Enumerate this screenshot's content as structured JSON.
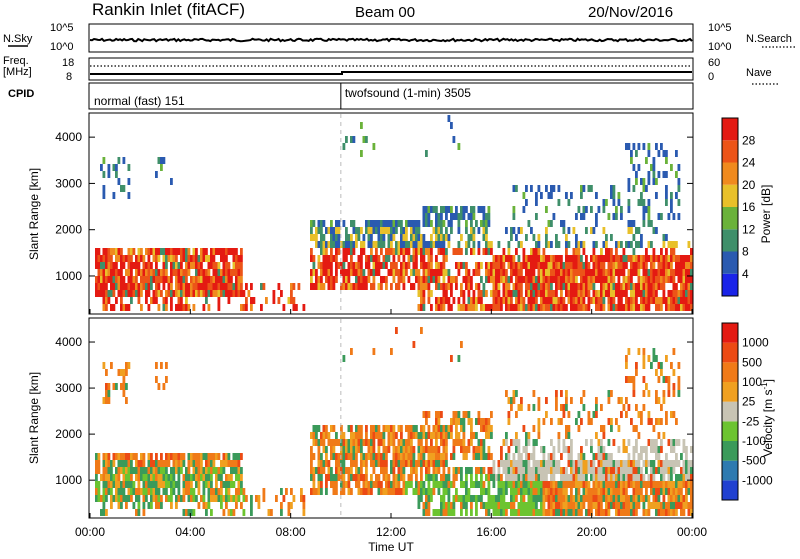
{
  "header": {
    "station": "Rankin Inlet (fitACF)",
    "beam": "Beam 00",
    "date": "20/Nov/2016"
  },
  "noise_panel": {
    "left_label": "N.Sky",
    "right_label": "N.Search",
    "top_tick": "10^5",
    "bottom_tick": "10^0",
    "right_top_tick": "10^5",
    "right_bottom_tick": "10^0"
  },
  "freq_panel": {
    "label_line1": "Freq.",
    "label_line2": "[MHz]",
    "top_tick": "18",
    "bottom_tick": "8",
    "right_label": "Nave",
    "right_top_tick": "60",
    "right_bottom_tick": "0"
  },
  "cpid_panel": {
    "label": "CPID",
    "mode1": "normal (fast) 151",
    "mode2": "twofsound (1-min) 3505",
    "mode_change_hour": 10
  },
  "chart_data": [
    {
      "type": "heatmap",
      "name_label": "Power [dB]",
      "ylabel": "Slant Range [km]",
      "xlabel": "Time UT",
      "xlim": [
        0,
        24
      ],
      "ylim": [
        200,
        4500
      ],
      "yticks": [
        1000,
        2000,
        3000,
        4000
      ],
      "colorbar": {
        "ticks": [
          "4",
          "8",
          "12",
          "16",
          "20",
          "24",
          "28"
        ],
        "colors": [
          "#1a24e8",
          "#2a5ab0",
          "#3f8f6a",
          "#6ab23a",
          "#e8c02a",
          "#f08a1e",
          "#ec5418",
          "#e41a12"
        ]
      }
    },
    {
      "type": "heatmap",
      "name_label": "Velocity",
      "unit_label": "[m s",
      "unit_sup": "-1",
      "unit_close": "]",
      "ylabel": "Slant Range [km]",
      "xlabel": "Time UT",
      "xlim": [
        0,
        24
      ],
      "ylim": [
        200,
        4500
      ],
      "yticks": [
        1000,
        2000,
        3000,
        4000
      ],
      "colorbar": {
        "ticks": [
          "1000",
          "500",
          "100",
          "25",
          "-25",
          "-100",
          "-500",
          "-1000"
        ],
        "colors": [
          "#2040d0",
          "#2e7ab0",
          "#3a9a5a",
          "#6cc430",
          "#c8c4b4",
          "#f0a020",
          "#f07a18",
          "#ec4a14",
          "#e41a12"
        ]
      }
    }
  ],
  "x_axis": {
    "ticks": [
      "00:00",
      "04:00",
      "08:00",
      "12:00",
      "16:00",
      "20:00",
      "00:00"
    ],
    "label": "Time UT"
  }
}
